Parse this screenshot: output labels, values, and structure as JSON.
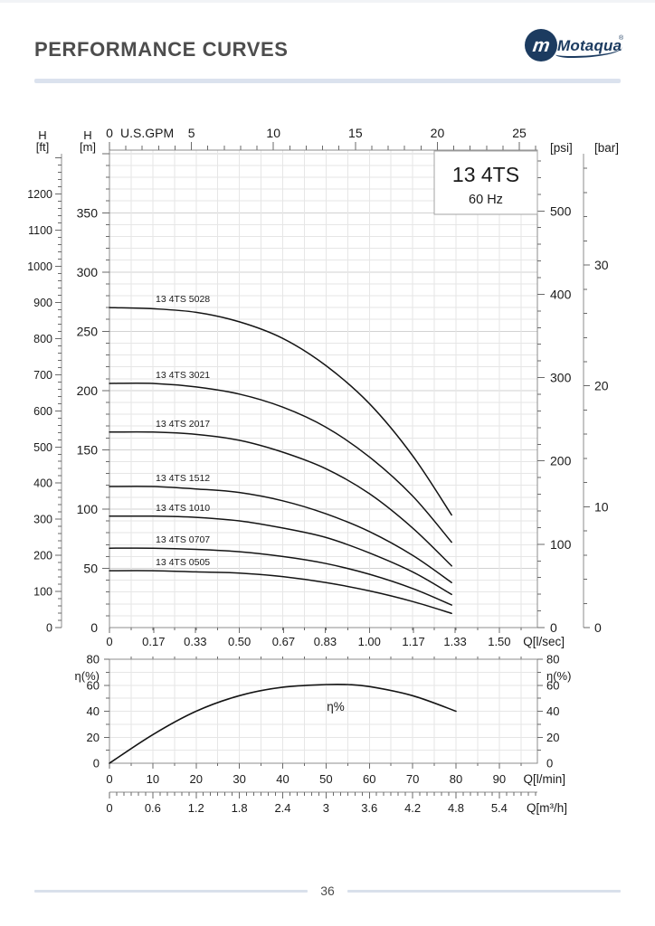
{
  "header": {
    "title": "PERFORMANCE CURVES",
    "logo": {
      "monogram": "m",
      "text": "Motaqua",
      "reg": "®"
    }
  },
  "footer": {
    "page_number": "36"
  },
  "colors": {
    "curve": "#141414",
    "grid_minor": "#e6e6e6",
    "grid_major": "#d2d2d2",
    "axis": "#8c8c8c",
    "tick": "#6a6a6a",
    "text": "#1a1a1a",
    "box_border": "#a3a3a3",
    "divider": "#dbe2ee",
    "logo_navy": "#1c3b60"
  },
  "chart_data": [
    {
      "id": "head-curves",
      "type": "line",
      "title": "13 4TS",
      "subtitle": "60 Hz",
      "axes": {
        "top_gpm": {
          "unit_label": "U.S.GPM",
          "ticks": [
            0,
            5,
            10,
            15,
            20,
            25
          ]
        },
        "bottom_lsec": {
          "axis_label": "Q[l/sec]",
          "ticks": [
            "0",
            "0.17",
            "0.33",
            "0.50",
            "0.67",
            "0.83",
            "1.00",
            "1.17",
            "1.33",
            "1.50"
          ]
        },
        "left_ft": {
          "header": [
            "H",
            "[ft]"
          ],
          "ticks": [
            0,
            100,
            200,
            300,
            400,
            500,
            600,
            700,
            800,
            900,
            1000,
            1100,
            1200
          ]
        },
        "left_m": {
          "header": [
            "H",
            "[m]"
          ],
          "ticks": [
            0,
            50,
            100,
            150,
            200,
            250,
            300,
            350
          ]
        },
        "right_psi": {
          "unit_label": "[psi]",
          "ticks": [
            0,
            100,
            200,
            300,
            400,
            500
          ]
        },
        "right_bar": {
          "unit_label": "[bar]",
          "ticks": [
            0,
            10,
            20,
            30
          ]
        }
      },
      "series": [
        {
          "label": "13 4TS 5028",
          "q_lmin": [
            0,
            10,
            20,
            30,
            40,
            50,
            60,
            70,
            79
          ],
          "h_m": [
            270,
            269,
            266,
            258,
            244,
            221,
            189,
            145,
            95
          ]
        },
        {
          "label": "13 4TS 3021",
          "q_lmin": [
            0,
            10,
            20,
            30,
            40,
            50,
            60,
            70,
            79
          ],
          "h_m": [
            206,
            206,
            203,
            197,
            186,
            169,
            144,
            111,
            72
          ]
        },
        {
          "label": "13 4TS 2017",
          "q_lmin": [
            0,
            10,
            20,
            30,
            40,
            50,
            60,
            70,
            79
          ],
          "h_m": [
            165,
            165,
            163,
            158,
            148,
            134,
            113,
            84,
            52
          ]
        },
        {
          "label": "13 4TS 1512",
          "q_lmin": [
            0,
            10,
            20,
            30,
            40,
            50,
            60,
            70,
            79
          ],
          "h_m": [
            119,
            119,
            117,
            114,
            107,
            96,
            81,
            61,
            38
          ]
        },
        {
          "label": "13 4TS 1010",
          "q_lmin": [
            0,
            10,
            20,
            30,
            40,
            50,
            60,
            70,
            79
          ],
          "h_m": [
            94,
            94,
            93,
            90,
            84,
            76,
            63,
            47,
            28
          ]
        },
        {
          "label": "13 4TS 0707",
          "q_lmin": [
            0,
            10,
            20,
            30,
            40,
            50,
            60,
            70,
            79
          ],
          "h_m": [
            67,
            67,
            66,
            64,
            60,
            54,
            45,
            33,
            19
          ]
        },
        {
          "label": "13 4TS 0505",
          "q_lmin": [
            0,
            10,
            20,
            30,
            40,
            50,
            60,
            70,
            79
          ],
          "h_m": [
            48,
            48,
            47,
            46,
            43,
            38,
            31,
            22,
            12
          ]
        }
      ]
    },
    {
      "id": "efficiency",
      "type": "line",
      "curve_label": "η%",
      "y_axis": {
        "label": "η(%)",
        "ticks": [
          0,
          20,
          40,
          60,
          80
        ]
      },
      "x_lmin": {
        "axis_label": "Q[l/min]",
        "ticks": [
          0,
          10,
          20,
          30,
          40,
          50,
          60,
          70,
          80,
          90
        ]
      },
      "x_m3h": {
        "axis_label": "Q[m³/h]",
        "ticks": [
          "0",
          "0.6",
          "1.2",
          "1.8",
          "2.4",
          "3",
          "3.6",
          "4.2",
          "4.8",
          "5.4"
        ]
      },
      "series": [
        {
          "label": "η%",
          "q_lmin": [
            0,
            10,
            20,
            30,
            40,
            50,
            55,
            60,
            70,
            80
          ],
          "eta_pct": [
            0,
            22,
            40,
            52,
            58.5,
            60.5,
            60.5,
            59,
            52,
            40
          ]
        }
      ]
    }
  ]
}
